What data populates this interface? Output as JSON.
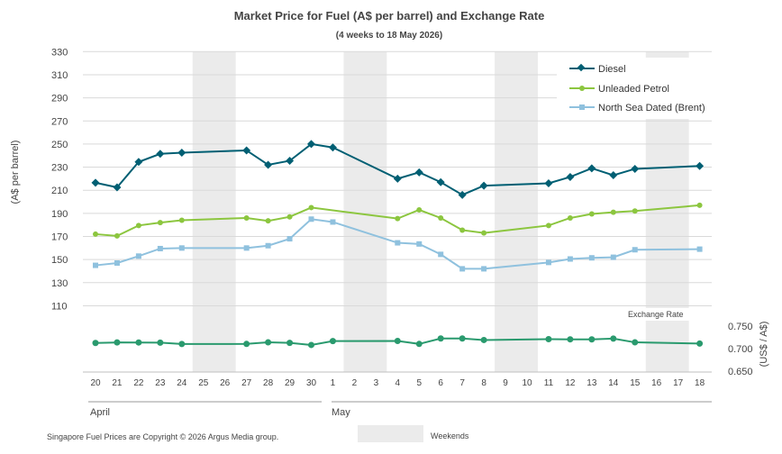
{
  "chart_data": {
    "type": "line",
    "title": "Market Price for Fuel (A$ per barrel) and Exchange Rate",
    "subtitle": "(4 weeks to 18 May 2026)",
    "ylabel": "(A$ per barrel)",
    "y2label": "(US$ / A$)",
    "ylim": [
      110,
      330
    ],
    "yticks": [
      110,
      130,
      150,
      170,
      190,
      210,
      230,
      250,
      270,
      290,
      310,
      330
    ],
    "y2lim": [
      0.65,
      0.75
    ],
    "y2ticks": [
      "0.750",
      "0.700",
      "0.650"
    ],
    "y2tick_values": [
      0.75,
      0.7,
      0.65
    ],
    "exchange_rate_label": "Exchange Rate",
    "legend_placement": "top-right",
    "grid": true,
    "categories": [
      "20",
      "21",
      "22",
      "23",
      "24",
      "25",
      "26",
      "27",
      "28",
      "29",
      "30",
      "1",
      "2",
      "3",
      "4",
      "5",
      "6",
      "7",
      "8",
      "9",
      "10",
      "11",
      "12",
      "13",
      "14",
      "15",
      "16",
      "17",
      "18"
    ],
    "months": [
      {
        "label": "April",
        "start": 0,
        "end": 10
      },
      {
        "label": "May",
        "start": 11,
        "end": 28
      }
    ],
    "weekend_bands": [
      [
        5,
        6
      ],
      [
        12,
        13
      ],
      [
        19,
        20
      ],
      [
        26,
        27
      ]
    ],
    "colors": {
      "diesel": "#005f73",
      "petrol": "#8cc63f",
      "brent": "#8fc1de",
      "exchange": "#2a9a6e",
      "weekend": "#ebebeb",
      "grid": "#d9d9d9"
    },
    "series": [
      {
        "name": "Diesel",
        "key": "diesel",
        "marker": "diamond",
        "values": [
          216.5,
          212.5,
          234.5,
          241.5,
          242.5,
          null,
          null,
          244.5,
          232,
          235.5,
          250,
          247,
          null,
          null,
          220,
          225.5,
          217,
          206,
          214,
          null,
          null,
          216,
          221.5,
          229,
          223,
          228.5,
          null,
          null,
          231
        ]
      },
      {
        "name": "Unleaded Petrol",
        "key": "petrol",
        "marker": "circle",
        "values": [
          172,
          170.5,
          179.5,
          182,
          184,
          null,
          null,
          186,
          183.5,
          187,
          195,
          null,
          null,
          null,
          185.5,
          193,
          186,
          175.5,
          173,
          null,
          null,
          179.5,
          186,
          189.5,
          191,
          192,
          null,
          null,
          197
        ]
      },
      {
        "name": "North Sea Dated (Brent)",
        "key": "brent",
        "marker": "square",
        "values": [
          145,
          147,
          153,
          159.5,
          160,
          null,
          null,
          160,
          162,
          168,
          185,
          182.5,
          null,
          null,
          164.5,
          163.5,
          154.5,
          142,
          142,
          null,
          null,
          147.5,
          150.5,
          151.5,
          152,
          158.5,
          null,
          null,
          159
        ]
      }
    ],
    "exchange_rate": {
      "key": "exchange",
      "marker": "circle",
      "values": [
        0.7125,
        0.7137,
        0.7136,
        0.7132,
        0.7103,
        null,
        null,
        0.7104,
        0.7139,
        0.7127,
        0.7081,
        0.7167,
        null,
        null,
        0.717,
        0.7104,
        0.7225,
        0.7225,
        0.7191,
        null,
        null,
        0.721,
        0.7206,
        0.7205,
        0.7222,
        0.7139,
        null,
        null,
        0.7112
      ]
    }
  },
  "footer": {
    "copyright": "Singapore Fuel Prices are Copyright © 2026 Argus Media group.",
    "weekends_label": "Weekends"
  }
}
